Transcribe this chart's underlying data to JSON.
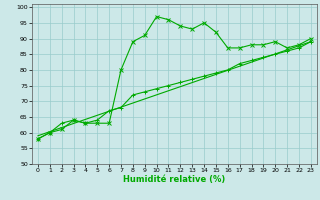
{
  "xlabel": "Humidité relative (%)",
  "xlim": [
    -0.5,
    23.5
  ],
  "ylim": [
    50,
    101
  ],
  "yticks": [
    50,
    55,
    60,
    65,
    70,
    75,
    80,
    85,
    90,
    95,
    100
  ],
  "xticks": [
    0,
    1,
    2,
    3,
    4,
    5,
    6,
    7,
    8,
    9,
    10,
    11,
    12,
    13,
    14,
    15,
    16,
    17,
    18,
    19,
    20,
    21,
    22,
    23
  ],
  "bg_color": "#cce8e8",
  "grid_color": "#99cccc",
  "line_color": "#00aa00",
  "line1_x": [
    0,
    1,
    2,
    3,
    4,
    5,
    6,
    7,
    8,
    9,
    10,
    11,
    12,
    13,
    14,
    15,
    16,
    17,
    18,
    19,
    20,
    21,
    22,
    23
  ],
  "line1_y": [
    58,
    60,
    61,
    64,
    63,
    63,
    63,
    80,
    89,
    91,
    97,
    96,
    94,
    93,
    95,
    92,
    87,
    87,
    88,
    88,
    89,
    87,
    88,
    90
  ],
  "line2_x": [
    0,
    1,
    2,
    3,
    4,
    5,
    6,
    7,
    8,
    9,
    10,
    11,
    12,
    13,
    14,
    15,
    16,
    17,
    18,
    19,
    20,
    21,
    22,
    23
  ],
  "line2_y": [
    58,
    60,
    63,
    64,
    63,
    64,
    67,
    68,
    72,
    73,
    74,
    75,
    76,
    77,
    78,
    79,
    80,
    82,
    83,
    84,
    85,
    86,
    87,
    89
  ],
  "line3_x": [
    0,
    23
  ],
  "line3_y": [
    59,
    89
  ],
  "tick_fontsize": 4.5,
  "xlabel_fontsize": 6.0
}
